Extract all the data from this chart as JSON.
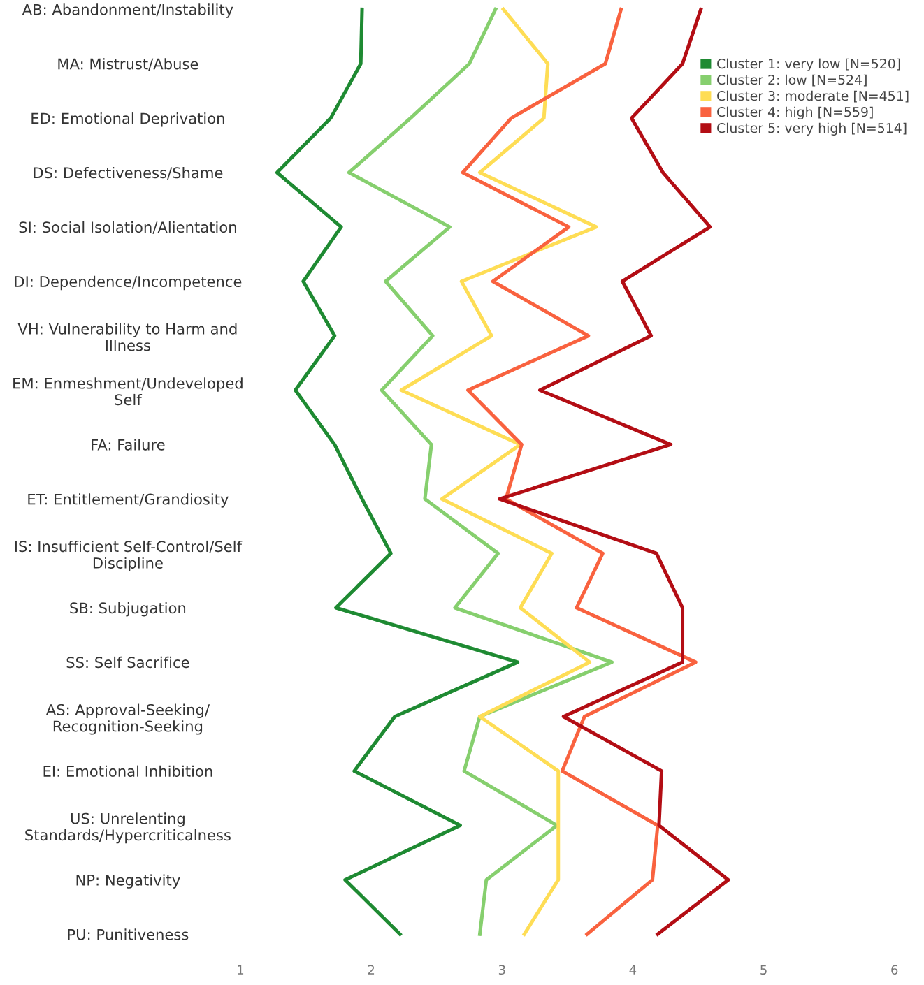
{
  "chart_data": {
    "type": "line",
    "orientation": "horizontal",
    "categories": [
      "AB: Abandonment/Instability",
      "MA: Mistrust/Abuse",
      "ED: Emotional Deprivation",
      "DS: Defectiveness/Shame",
      "SI: Social Isolation/Alientation",
      "DI: Dependence/Incompetence",
      "VH: Vulnerability to Harm and\nIllness",
      "EM: Enmeshment/Undeveloped\nSelf",
      "FA: Failure",
      "ET: Entitlement/Grandiosity",
      "IS: Insufficient Self-Control/Self\nDiscipline",
      "SB: Subjugation",
      "SS: Self Sacrifice",
      "AS: Approval-Seeking/\nRecognition-Seeking",
      "EI: Emotional Inhibition",
      "US: Unrelenting\nStandards/Hypercriticalness",
      "NP: Negativity",
      "PU: Punitiveness"
    ],
    "series": [
      {
        "name": "Cluster 1: very low [N=520]",
        "color": "#1e8a32",
        "values": [
          1.93,
          1.92,
          1.69,
          1.28,
          1.77,
          1.48,
          1.72,
          1.42,
          1.72,
          1.93,
          2.15,
          1.73,
          3.12,
          2.18,
          1.87,
          2.68,
          1.8,
          2.22
        ]
      },
      {
        "name": "Cluster 2: low [N=524]",
        "color": "#86cf6e",
        "values": [
          2.95,
          2.75,
          2.3,
          1.83,
          2.6,
          2.11,
          2.47,
          2.08,
          2.46,
          2.41,
          2.97,
          2.64,
          3.84,
          2.83,
          2.71,
          3.42,
          2.88,
          2.83
        ]
      },
      {
        "name": "Cluster 3: moderate [N=451]",
        "color": "#fedd55",
        "values": [
          3.01,
          3.35,
          3.32,
          2.83,
          3.72,
          2.69,
          2.92,
          2.23,
          3.14,
          2.54,
          3.38,
          3.14,
          3.67,
          2.83,
          3.43,
          3.43,
          3.43,
          3.17
        ]
      },
      {
        "name": "Cluster 4: high [N=559]",
        "color": "#f9623f",
        "values": [
          3.91,
          3.79,
          3.07,
          2.7,
          3.51,
          2.93,
          3.66,
          2.74,
          3.15,
          3.03,
          3.77,
          3.57,
          4.48,
          3.63,
          3.46,
          4.19,
          4.15,
          3.65
        ]
      },
      {
        "name": "Cluster 5: very high [N=514]",
        "color": "#b30d14",
        "values": [
          4.52,
          4.38,
          3.99,
          4.23,
          4.59,
          3.92,
          4.14,
          3.29,
          4.29,
          2.98,
          4.18,
          4.38,
          4.38,
          3.47,
          4.22,
          4.2,
          4.73,
          4.19
        ]
      }
    ],
    "xlim": [
      1,
      6
    ],
    "xticks": [
      1,
      2,
      3,
      4,
      5,
      6
    ],
    "grid": false,
    "legend": "top right",
    "marker": "none",
    "line_style": "solid"
  }
}
